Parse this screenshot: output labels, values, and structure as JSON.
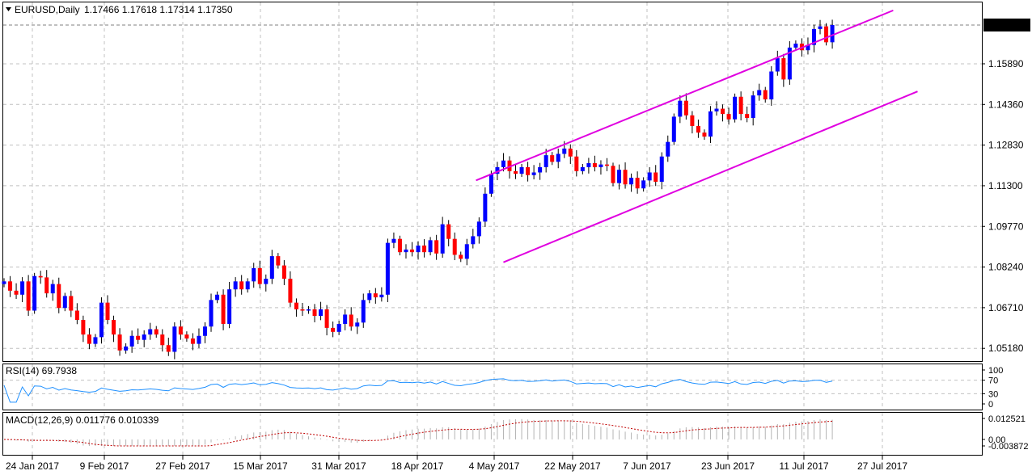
{
  "header": {
    "symbol": "EURUSD,Daily",
    "ohlc": "1.17466 1.17618 1.17314 1.17350"
  },
  "colors": {
    "bull": "#0000ff",
    "bear": "#ff0000",
    "channel": "#e000e0",
    "grid": "#c0c0c0",
    "rsi": "#1e90ff",
    "macd_hist": "#b4b4b4",
    "macd_signal": "#c00000"
  },
  "chart_data": [
    {
      "type": "candlestick",
      "title": "EURUSD,Daily",
      "last_price": "1.17350",
      "y_ticks": [
        "1.17350",
        "1.15890",
        "1.14360",
        "1.12830",
        "1.11300",
        "1.09770",
        "1.08240",
        "1.06710",
        "1.05180"
      ],
      "ylim": [
        1.047,
        1.182
      ],
      "x_ticks": [
        "24 Jan 2017",
        "9 Feb 2017",
        "27 Feb 2017",
        "15 Mar 2017",
        "31 Mar 2017",
        "18 Apr 2017",
        "4 May 2017",
        "22 May 2017",
        "7 Jun 2017",
        "23 Jun 2017",
        "11 Jul 2017",
        "27 Jul 2017"
      ],
      "grid": true,
      "closes": [
        1.077,
        1.0735,
        1.072,
        1.077,
        1.066,
        1.079,
        1.0785,
        1.0725,
        1.076,
        1.067,
        1.0715,
        1.066,
        1.0625,
        1.057,
        1.0535,
        1.056,
        1.069,
        1.0625,
        1.057,
        1.051,
        1.0525,
        1.0565,
        1.055,
        1.057,
        1.059,
        1.057,
        1.053,
        1.0505,
        1.06,
        1.057,
        1.0555,
        1.0535,
        1.0565,
        1.06,
        1.07,
        1.072,
        1.061,
        1.074,
        1.077,
        1.074,
        1.077,
        1.082,
        1.076,
        1.078,
        1.0865,
        1.083,
        1.078,
        1.069,
        1.0665,
        1.066,
        1.0665,
        1.064,
        1.0665,
        1.0595,
        1.058,
        1.061,
        1.0645,
        1.06,
        1.0615,
        1.07,
        1.0725,
        1.071,
        1.072,
        1.0915,
        1.093,
        1.088,
        1.089,
        1.088,
        1.0905,
        1.088,
        1.0925,
        1.0875,
        1.0985,
        1.093,
        1.087,
        1.0855,
        1.091,
        1.094,
        1.0995,
        1.11,
        1.1175,
        1.12,
        1.1225,
        1.1185,
        1.1175,
        1.12,
        1.117,
        1.118,
        1.12,
        1.1245,
        1.122,
        1.125,
        1.127,
        1.124,
        1.1185,
        1.12,
        1.1215,
        1.12,
        1.121,
        1.1205,
        1.114,
        1.119,
        1.1135,
        1.116,
        1.112,
        1.115,
        1.118,
        1.1145,
        1.124,
        1.1295,
        1.139,
        1.145,
        1.1395,
        1.1355,
        1.133,
        1.1315,
        1.141,
        1.142,
        1.14,
        1.138,
        1.1465,
        1.14,
        1.1385,
        1.147,
        1.149,
        1.1455,
        1.156,
        1.161,
        1.153,
        1.165,
        1.1665,
        1.164,
        1.166,
        1.172,
        1.173,
        1.167,
        1.1735
      ]
    },
    {
      "type": "line",
      "title": "RSI(14) 69.7938",
      "y_ticks": [
        "100",
        "70",
        "30",
        "0"
      ],
      "ylim": [
        0,
        100
      ],
      "last_value": 69.7938
    },
    {
      "type": "bar",
      "title": "MACD(12,26,9) 0.011776 0.010339",
      "y_ticks": [
        "0.012521",
        "0.00",
        "-0.003872"
      ],
      "ylim": [
        -0.003872,
        0.012521
      ],
      "macd": 0.011776,
      "signal": 0.010339
    }
  ]
}
